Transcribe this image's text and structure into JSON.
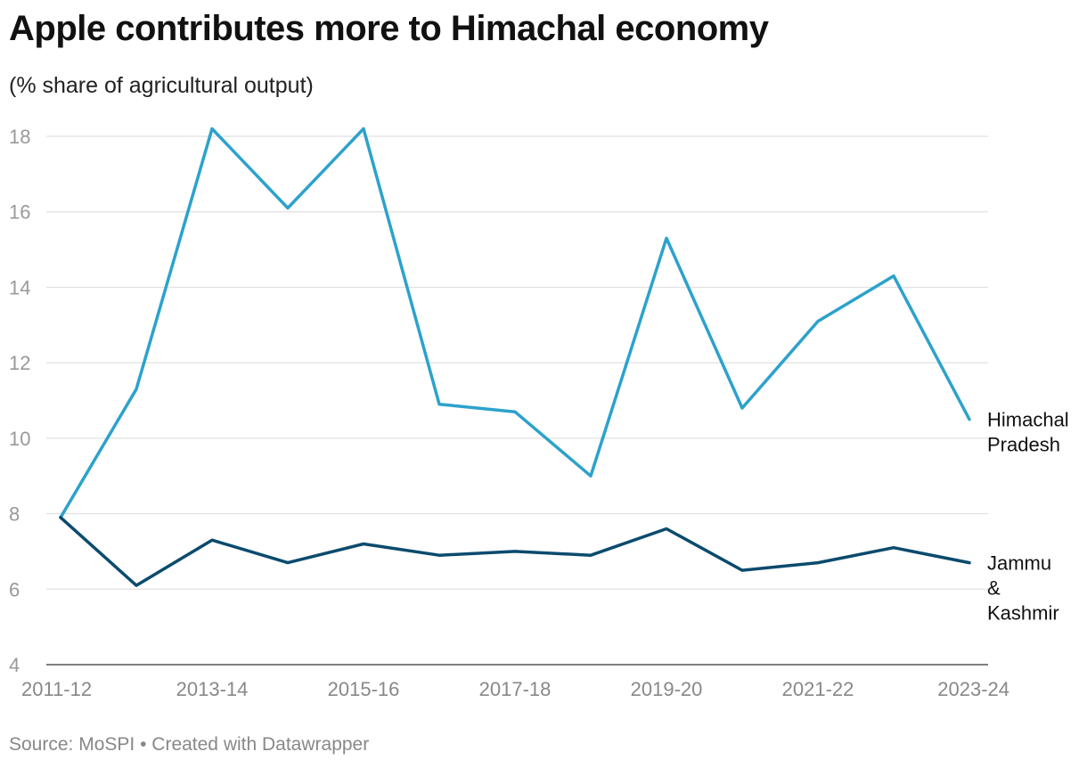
{
  "header": {
    "title": "Apple contributes more to Himachal economy",
    "subtitle": "(% share of agricultural output)"
  },
  "footer": {
    "source": "Source: MoSPI",
    "separator": "•",
    "credit": "Created with Datawrapper"
  },
  "chart_data": {
    "type": "line",
    "title": "Apple contributes more to Himachal economy",
    "subtitle": "(% share of agricultural output)",
    "xlabel": "",
    "ylabel": "",
    "categories": [
      "2011-12",
      "2012-13",
      "2013-14",
      "2014-15",
      "2015-16",
      "2016-17",
      "2017-18",
      "2018-19",
      "2019-20",
      "2020-21",
      "2021-22",
      "2022-23",
      "2023-24"
    ],
    "x_tick_labels": [
      "2011-12",
      "2013-14",
      "2015-16",
      "2017-18",
      "2019-20",
      "2021-22",
      "2023-24"
    ],
    "y_ticks": [
      4,
      6,
      8,
      10,
      12,
      14,
      16,
      18
    ],
    "ylim": [
      4,
      18
    ],
    "grid": true,
    "legend": "direct labels at line ends",
    "series": [
      {
        "name": "Himachal Pradesh",
        "label_lines": [
          "Himachal",
          "Pradesh"
        ],
        "color": "#2ca2cc",
        "values": [
          7.9,
          11.3,
          18.2,
          16.1,
          18.2,
          10.9,
          10.7,
          9.0,
          15.3,
          10.8,
          13.1,
          14.3,
          10.5
        ]
      },
      {
        "name": "Jammu & Kashmir",
        "label_lines": [
          "Jammu",
          "&",
          "Kashmir"
        ],
        "color": "#0b4b6e",
        "values": [
          7.9,
          6.1,
          7.3,
          6.7,
          7.2,
          6.9,
          7.0,
          6.9,
          7.6,
          6.5,
          6.7,
          7.1,
          6.7
        ]
      }
    ]
  }
}
